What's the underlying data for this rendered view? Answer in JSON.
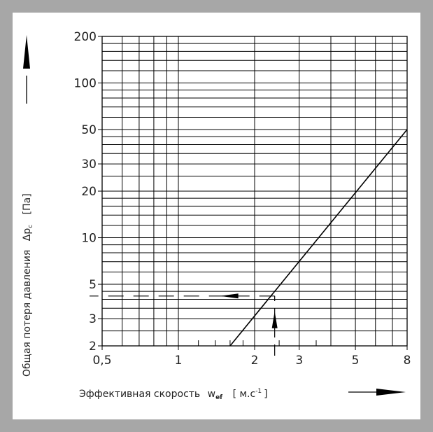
{
  "chart_data": {
    "type": "line",
    "x_scale": "log",
    "y_scale": "log",
    "xlim": [
      0.5,
      8
    ],
    "ylim": [
      2,
      200
    ],
    "grid": true,
    "x_ticks": [
      {
        "value": 0.5,
        "label": "0,5"
      },
      {
        "value": 1,
        "label": "1"
      },
      {
        "value": 2,
        "label": "2"
      },
      {
        "value": 3,
        "label": "3"
      },
      {
        "value": 5,
        "label": "5"
      },
      {
        "value": 8,
        "label": "8"
      }
    ],
    "y_ticks": [
      {
        "value": 2,
        "label": "2"
      },
      {
        "value": 3,
        "label": "3"
      },
      {
        "value": 5,
        "label": "5"
      },
      {
        "value": 10,
        "label": "10"
      },
      {
        "value": 20,
        "label": "20"
      },
      {
        "value": 30,
        "label": "30"
      },
      {
        "value": 50,
        "label": "50"
      },
      {
        "value": 100,
        "label": "100"
      },
      {
        "value": 200,
        "label": "200"
      }
    ],
    "x_grid": [
      0.6,
      0.7,
      0.8,
      0.9,
      1,
      2,
      3,
      4,
      5,
      6,
      7,
      8
    ],
    "x_minor": [
      1.2,
      1.4,
      1.6,
      1.8,
      2.5,
      3.5
    ],
    "y_grid": [
      2.5,
      3,
      3.5,
      4,
      4.5,
      5,
      6,
      7,
      8,
      9,
      10,
      12,
      14,
      16,
      18,
      20,
      25,
      30,
      35,
      40,
      45,
      50,
      60,
      70,
      80,
      90,
      100,
      120,
      140,
      160,
      180,
      200
    ],
    "series": [
      {
        "x": [
          1.6,
          8
        ],
        "y": [
          2,
          50
        ]
      }
    ],
    "example": {
      "x": 2.4,
      "y": 4.2
    },
    "xlabel": "Эффективная скорость",
    "xlabel_symbol": "w",
    "xlabel_subscript": "ef",
    "xlabel_unit_open": "[ м.с",
    "xlabel_unit_sup": "-1",
    "xlabel_unit_close": "]",
    "ylabel": "Общая потеря давления",
    "ylabel_symbol": "Δp",
    "ylabel_subscript": "c",
    "ylabel_unit": "[Па]"
  }
}
